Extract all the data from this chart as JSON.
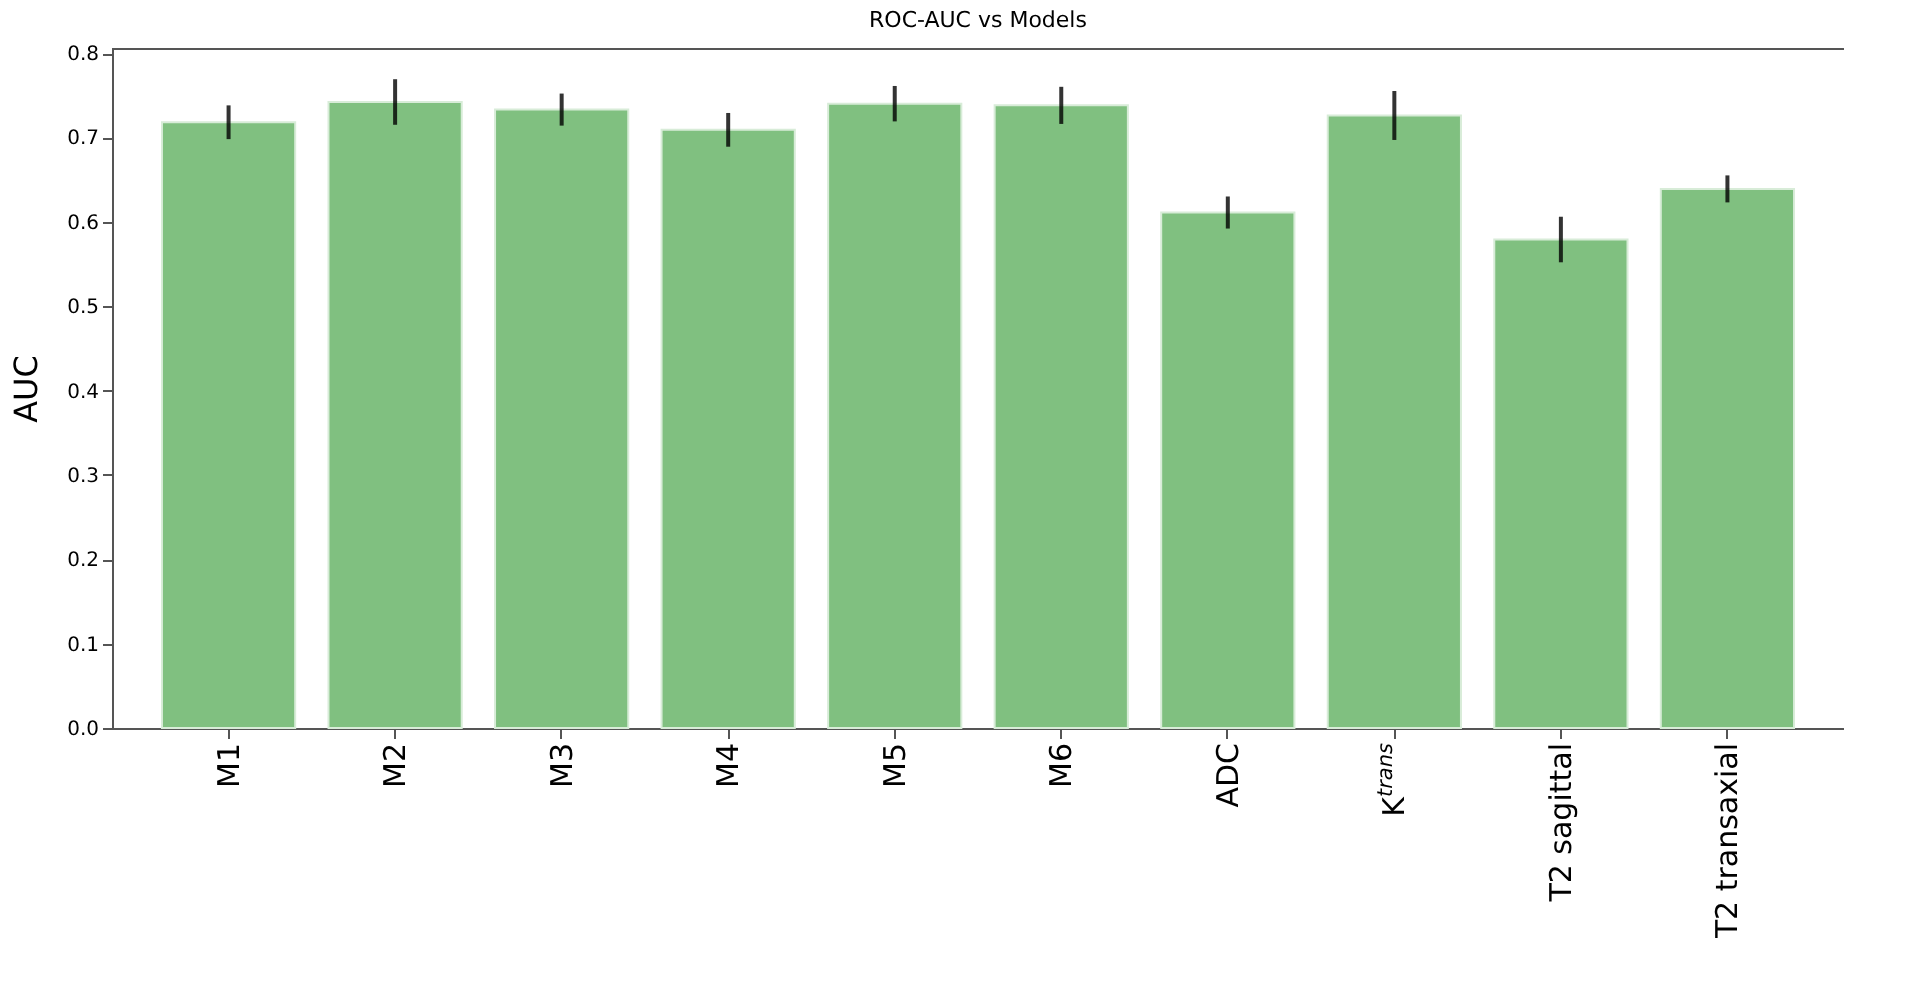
{
  "chart_data": {
    "type": "bar",
    "title": "ROC-AUC vs Models",
    "ylabel": "AUC",
    "categories": [
      "M1",
      "M2",
      "M3",
      "M4",
      "M5",
      "M6",
      "ADC",
      "K$^{trans}$",
      "T2 sagittal",
      "T2 transaxial"
    ],
    "values": [
      0.718,
      0.742,
      0.733,
      0.709,
      0.74,
      0.738,
      0.611,
      0.726,
      0.579,
      0.639
    ],
    "errors": [
      0.02,
      0.027,
      0.019,
      0.02,
      0.021,
      0.022,
      0.019,
      0.029,
      0.027,
      0.016
    ],
    "color": "#80c080",
    "ylim": [
      0,
      0.806
    ],
    "yticks": [
      {
        "value": 0,
        "label": "0.0"
      },
      0.1,
      0.2,
      0.3,
      0.4,
      0.5,
      0.6,
      0.7,
      0.8
    ],
    "grid": false
  }
}
